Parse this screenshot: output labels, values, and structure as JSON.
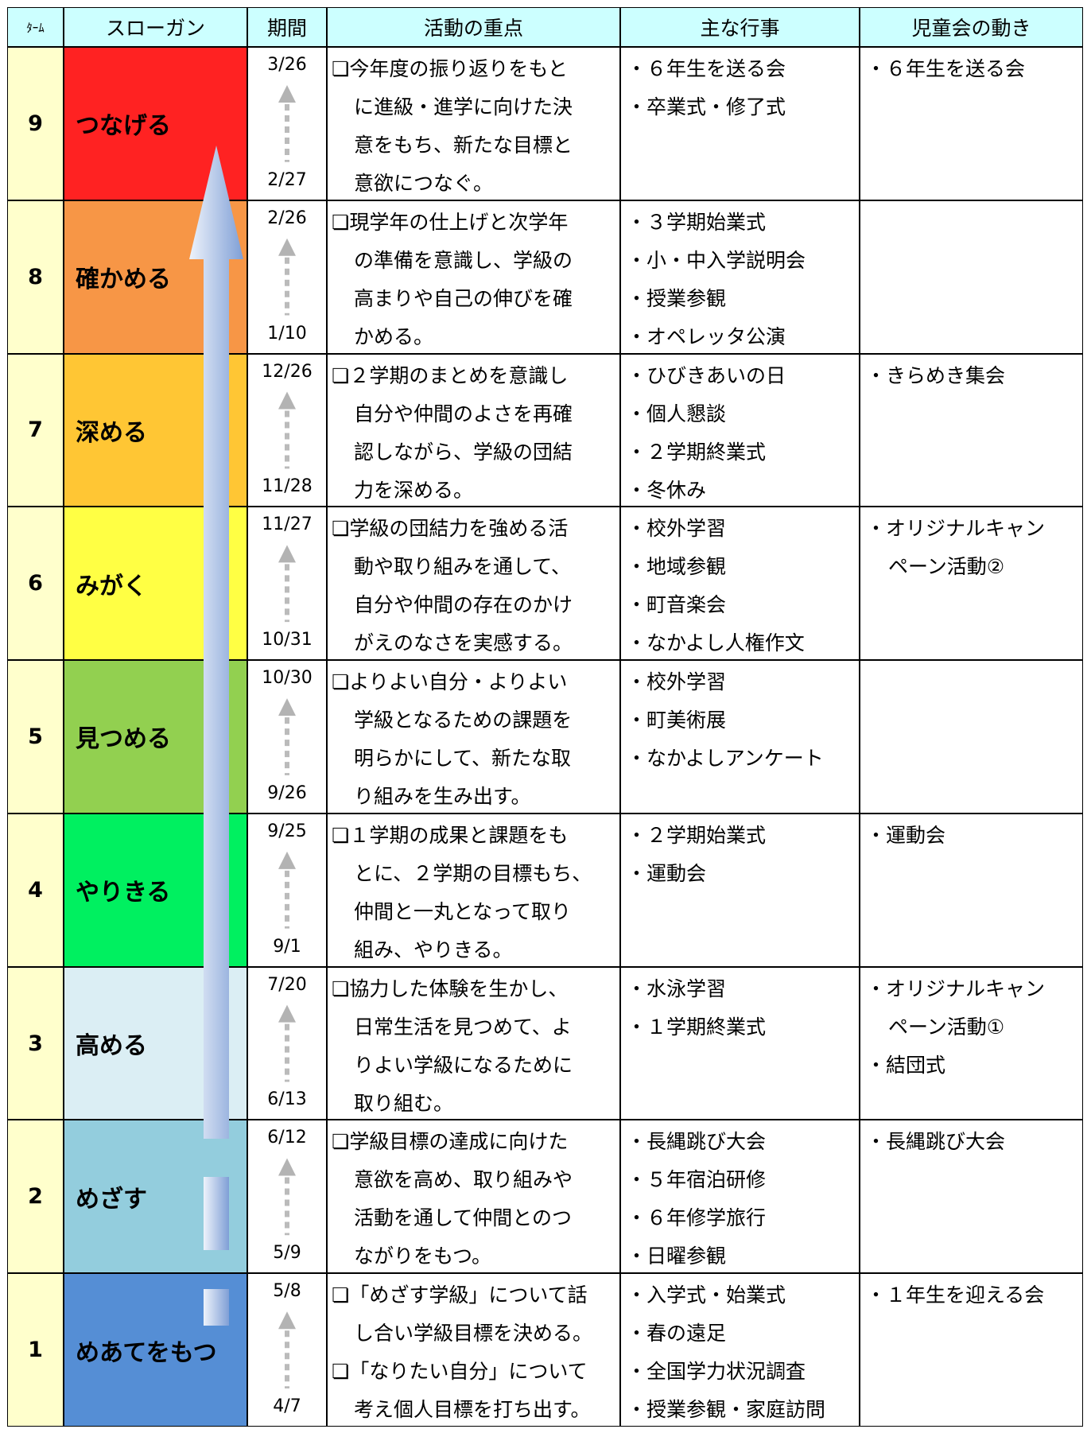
{
  "header": [
    "ﾀｰﾑ",
    "スローガン",
    "期間",
    "活動の重点",
    "主な行事",
    "児童会の動き"
  ],
  "rows": [
    {
      "term": "9",
      "slogan": "つなげる",
      "start": "3/26",
      "end": "2/27",
      "focus": [
        "❏今年度の振り返りをもと",
        "に進級・進学に向けた決",
        "意をもち、新たな目標と",
        "意欲につなぐ。"
      ],
      "events": [
        "・６年生を送る会",
        "・卒業式・修了式"
      ],
      "council": [
        "・６年生を送る会"
      ]
    },
    {
      "term": "8",
      "slogan": "確かめる",
      "start": "2/26",
      "end": "1/10",
      "focus": [
        "❏現学年の仕上げと次学年",
        "の準備を意識し、学級の",
        "高まりや自己の伸びを確",
        "かめる。"
      ],
      "events": [
        "・３学期始業式",
        "・小・中入学説明会",
        "・授業参観",
        "・オペレッタ公演"
      ],
      "council": []
    },
    {
      "term": "7",
      "slogan": "深める",
      "start": "12/26",
      "end": "11/28",
      "focus": [
        "❏２学期のまとめを意識し",
        "自分や仲間のよさを再確",
        "認しながら、学級の団結",
        "力を深める。"
      ],
      "events": [
        "・ひびきあいの日",
        "・個人懇談",
        "・２学期終業式",
        "・冬休み"
      ],
      "council": [
        "・きらめき集会"
      ]
    },
    {
      "term": "6",
      "slogan": "みがく",
      "start": "11/27",
      "end": "10/31",
      "focus": [
        "❏学級の団結力を強める活",
        "動や取り組みを通して、",
        "自分や仲間の存在のかけ",
        "がえのなさを実感する。"
      ],
      "events": [
        "・校外学習",
        "・地域参観",
        "・町音楽会",
        "・なかよし人権作文"
      ],
      "council": [
        "・オリジナルキャン",
        "ペーン活動②"
      ]
    },
    {
      "term": "5",
      "slogan": "見つめる",
      "start": "10/30",
      "end": "9/26",
      "focus": [
        "❏よりよい自分・よりよい",
        "学級となるための課題を",
        "明らかにして、新たな取",
        "り組みを生み出す。"
      ],
      "events": [
        "・校外学習",
        "・町美術展",
        "・なかよしアンケート"
      ],
      "council": []
    },
    {
      "term": "4",
      "slogan": "やりきる",
      "start": "9/25",
      "end": "9/1",
      "focus": [
        "❏１学期の成果と課題をも",
        "とに、２学期の目標もち、",
        "仲間と一丸となって取り",
        "組み、やりきる。"
      ],
      "events": [
        "・２学期始業式",
        "・運動会"
      ],
      "council": [
        "・運動会"
      ]
    },
    {
      "term": "3",
      "slogan": "高める",
      "start": "7/20",
      "end": "6/13",
      "focus": [
        "❏協力した体験を生かし、",
        "日常生活を見つめて、よ",
        "りよい学級になるために",
        "取り組む。"
      ],
      "events": [
        "・水泳学習",
        "・１学期終業式"
      ],
      "council": [
        "・オリジナルキャン",
        "ペーン活動①",
        "・結団式"
      ]
    },
    {
      "term": "2",
      "slogan": "めざす",
      "start": "6/12",
      "end": "5/9",
      "focus": [
        "❏学級目標の達成に向けた",
        "意欲を高め、取り組みや",
        "活動を通して仲間とのつ",
        "ながりをもつ。"
      ],
      "events": [
        "・長縄跳び大会",
        "・５年宿泊研修",
        "・６年修学旅行",
        "・日曜参観"
      ],
      "council": [
        "・長縄跳び大会"
      ]
    },
    {
      "term": "1",
      "slogan": "めあてをもつ",
      "start": "5/8",
      "end": "4/7",
      "focus": [
        "❏「めざす学級」について話",
        "し合い学級目標を決める。",
        "❏「なりたい自分」について",
        "考え個人目標を打ち出す。"
      ],
      "events": [
        "・入学式・始業式",
        "・春の遠足",
        "・全国学力状況調査",
        "・授業参観・家庭訪問"
      ],
      "council": [
        "・１年生を迎える会"
      ]
    }
  ]
}
